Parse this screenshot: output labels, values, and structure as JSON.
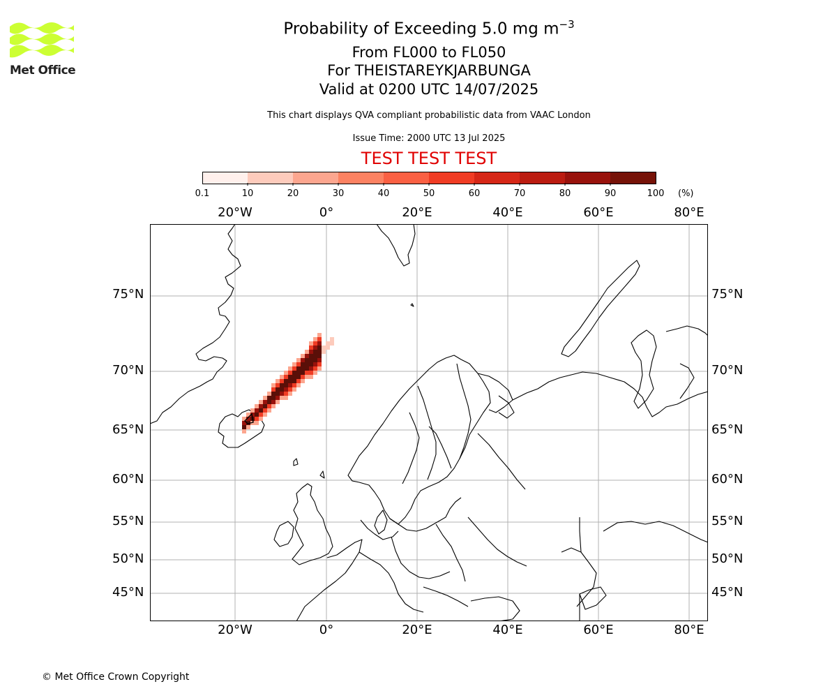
{
  "header": {
    "title_main": "Probability of Exceeding 5.0 mg m",
    "title_sup": "−3",
    "flight_levels": "From FL000 to FL050",
    "volcano": "For THEISTAREYKJARBUNGA",
    "valid_time": "Valid at 0200 UTC 14/07/2025",
    "disclaimer": "This chart displays QVA compliant probabilistic data from VAAC London",
    "issue_time": "Issue Time: 2000 UTC 13 Jul 2025",
    "test_banner": "TEST TEST TEST"
  },
  "logo": {
    "text": "Met Office",
    "color": "#ccff33"
  },
  "colorbar": {
    "labels": [
      "0.1",
      "10",
      "20",
      "30",
      "40",
      "50",
      "60",
      "70",
      "80",
      "90",
      "100"
    ],
    "unit": "(%)",
    "colors": [
      "#fff0ec",
      "#fdcbbc",
      "#fca68f",
      "#fc8262",
      "#fa6043",
      "#f03c24",
      "#d62717",
      "#bb1c11",
      "#98120c",
      "#761208",
      "#5a0f08"
    ]
  },
  "axes": {
    "lon_labels": [
      "20°W",
      "0°",
      "20°E",
      "40°E",
      "60°E",
      "80°E"
    ],
    "lat_labels": [
      "75°N",
      "70°N",
      "65°N",
      "60°N",
      "55°N",
      "50°N",
      "45°N"
    ]
  },
  "plume": {
    "core_color": "#5a0f08",
    "edge_color": "#fca68f",
    "outer_color": "#fff0ec"
  },
  "footer": {
    "copyright": "© Met Office Crown Copyright"
  }
}
